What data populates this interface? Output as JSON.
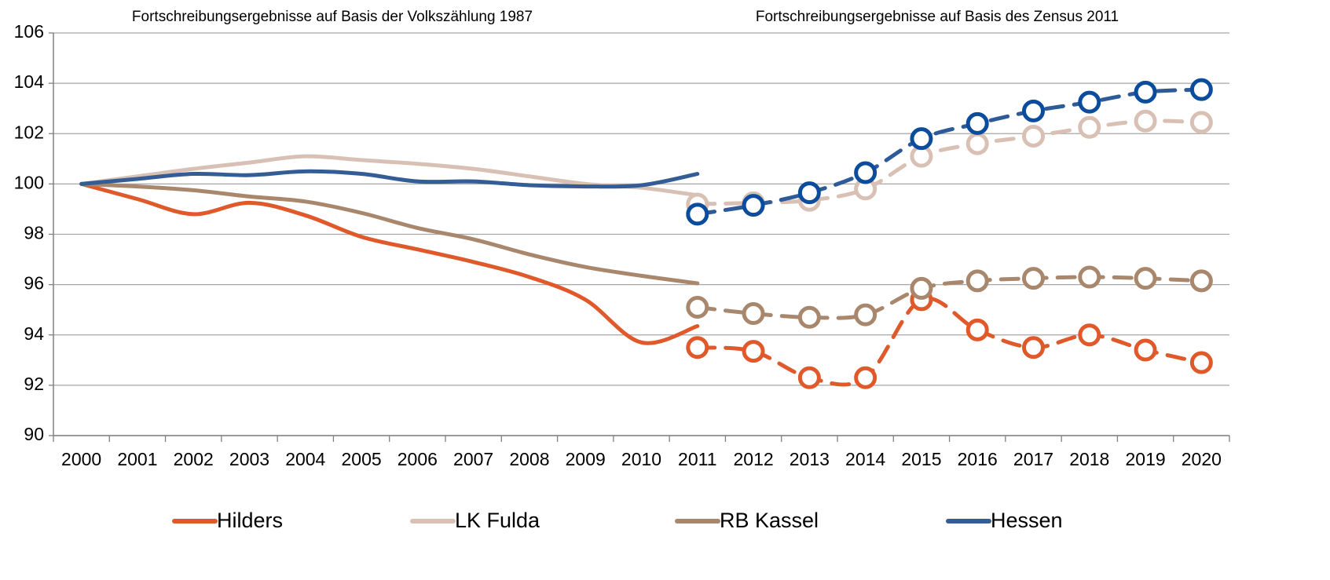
{
  "chart_data": {
    "type": "line",
    "annotations": [
      "Fortschreibungsergebnisse auf Basis der Volkszählung 1987",
      "Fortschreibungsergebnisse auf Basis des Zensus 2011"
    ],
    "categories": [
      "2000",
      "2001",
      "2002",
      "2003",
      "2004",
      "2005",
      "2006",
      "2007",
      "2008",
      "2009",
      "2010",
      "2011",
      "2012",
      "2013",
      "2014",
      "2015",
      "2016",
      "2017",
      "2018",
      "2019",
      "2020"
    ],
    "ylim": [
      90,
      106
    ],
    "yticks": [
      90,
      92,
      94,
      96,
      98,
      100,
      102,
      104,
      106
    ],
    "grid": true,
    "legend": "bottom",
    "series": [
      {
        "name": "Hilders",
        "color": "#e0592a",
        "style": "solid",
        "values": [
          100,
          99.4,
          98.8,
          99.25,
          98.75,
          97.9,
          97.4,
          96.9,
          96.3,
          95.4,
          93.7,
          94.35,
          null,
          null,
          null,
          null,
          null,
          null,
          null,
          null,
          null
        ]
      },
      {
        "name": "LK Fulda",
        "color": "#d9c0b4",
        "style": "solid",
        "values": [
          100,
          100.3,
          100.6,
          100.85,
          101.1,
          100.95,
          100.8,
          100.6,
          100.3,
          100.0,
          99.85,
          99.55,
          null,
          null,
          null,
          null,
          null,
          null,
          null,
          null,
          null
        ]
      },
      {
        "name": "RB Kassel",
        "color": "#a8876d",
        "style": "solid",
        "values": [
          100,
          99.9,
          99.75,
          99.5,
          99.3,
          98.85,
          98.25,
          97.8,
          97.2,
          96.7,
          96.35,
          96.05,
          null,
          null,
          null,
          null,
          null,
          null,
          null,
          null,
          null
        ]
      },
      {
        "name": "Hessen",
        "color": "#345d95",
        "style": "solid",
        "values": [
          100,
          100.2,
          100.4,
          100.35,
          100.5,
          100.4,
          100.1,
          100.1,
          99.95,
          99.9,
          99.95,
          100.4,
          null,
          null,
          null,
          null,
          null,
          null,
          null,
          null,
          null
        ]
      },
      {
        "color": "#e0592a",
        "style": "dashed",
        "marker": "circle",
        "values": [
          null,
          null,
          null,
          null,
          null,
          null,
          null,
          null,
          null,
          null,
          null,
          93.5,
          93.35,
          92.3,
          92.3,
          95.4,
          94.2,
          93.5,
          94.0,
          93.4,
          92.9
        ]
      },
      {
        "color": "#d9c0b4",
        "style": "dashed",
        "marker": "circle",
        "values": [
          null,
          null,
          null,
          null,
          null,
          null,
          null,
          null,
          null,
          null,
          null,
          99.2,
          99.25,
          99.35,
          99.8,
          101.1,
          101.6,
          101.9,
          102.25,
          102.5,
          102.45
        ]
      },
      {
        "color": "#a8876d",
        "style": "dashed",
        "marker": "circle",
        "values": [
          null,
          null,
          null,
          null,
          null,
          null,
          null,
          null,
          null,
          null,
          null,
          95.1,
          94.85,
          94.7,
          94.8,
          95.85,
          96.15,
          96.25,
          96.3,
          96.25,
          96.15
        ]
      },
      {
        "color": "#2e5a97",
        "marker_color": "#0b4c9c",
        "style": "dashed",
        "marker": "circle",
        "values": [
          null,
          null,
          null,
          null,
          null,
          null,
          null,
          null,
          null,
          null,
          null,
          98.8,
          99.15,
          99.65,
          100.45,
          101.8,
          102.4,
          102.9,
          103.25,
          103.65,
          103.75
        ]
      }
    ]
  }
}
